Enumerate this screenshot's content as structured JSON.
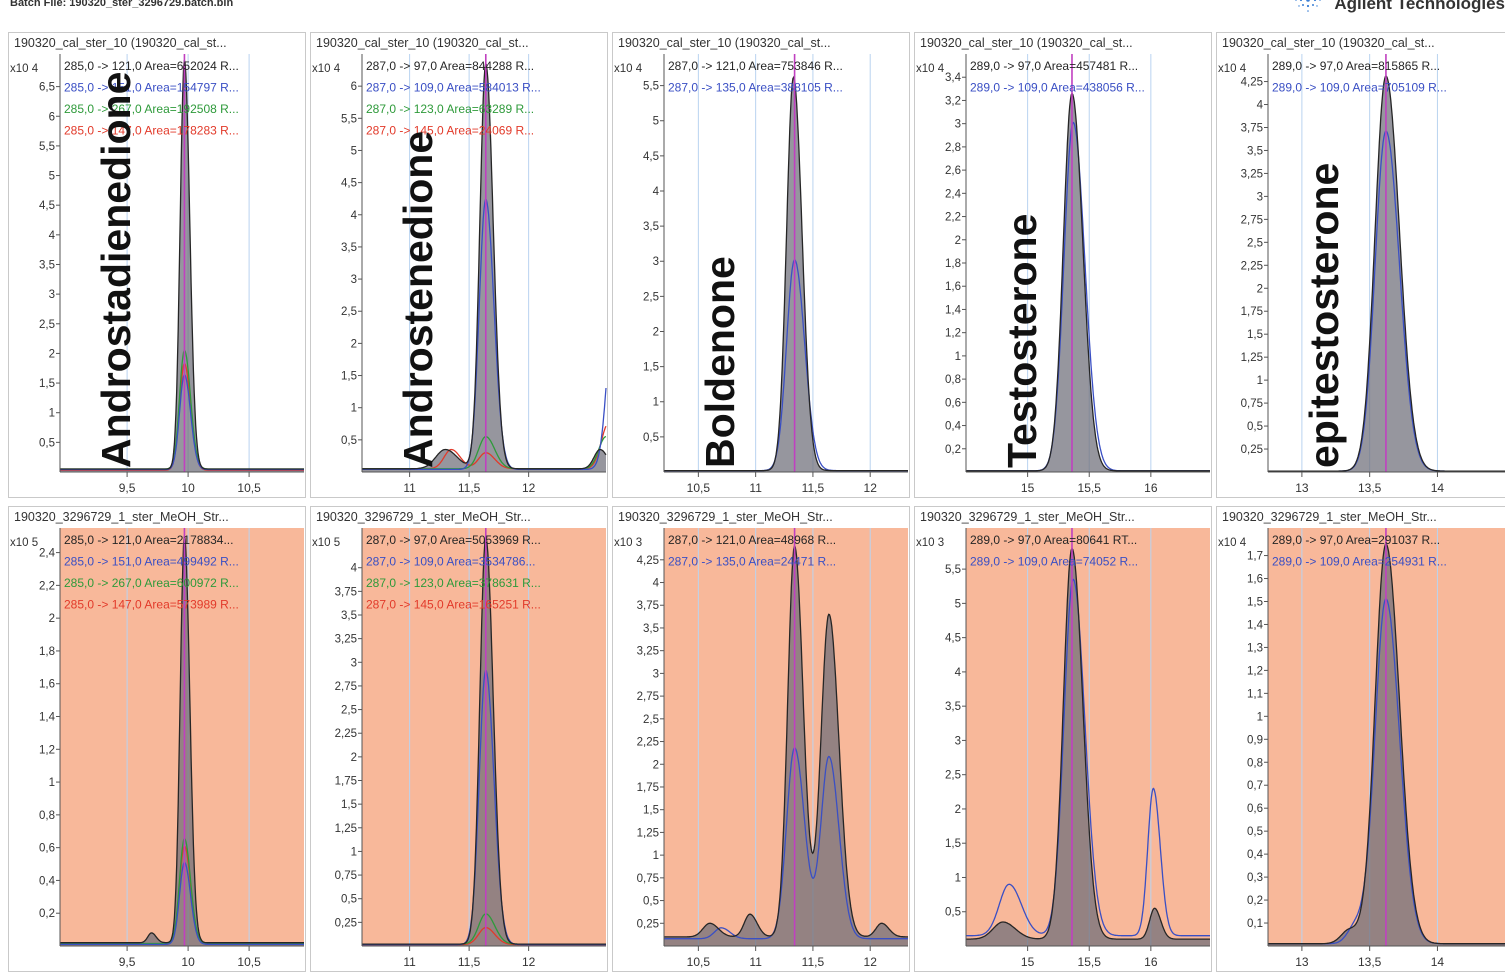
{
  "header": {
    "batch_file": "Batch File: 190320_ster_3296729.batch.bin",
    "brand": "Agilent Technologies",
    "logo_icon": "agilent-spark-logo-icon"
  },
  "colors": {
    "black": "#262626",
    "blue": "#3a4fc4",
    "green": "#2e9a3a",
    "red": "#e23a2a",
    "marker": "#c040c0",
    "calibration_bg": "#ffffff",
    "sample_bg": "#f8b89a",
    "fill": "#6e6e78",
    "grid": "#b9d3f0"
  },
  "chart_data": [
    {
      "type": "line",
      "panel": "calibration",
      "compound": "Androstadienedione",
      "title": "190320_cal_ster_10  (190320_cal_st...",
      "exponent": "x10 4",
      "xlim": [
        8.95,
        10.95
      ],
      "ylim": [
        0,
        7.05
      ],
      "xticks": [
        "9,5",
        "10",
        "10,5"
      ],
      "xtick_values": [
        9.5,
        10,
        10.5
      ],
      "yticks": [
        "0,5",
        "1",
        "1,5",
        "2",
        "2,5",
        "3",
        "3,5",
        "4",
        "4,5",
        "5",
        "5,5",
        "6",
        "6,5"
      ],
      "ytick_values": [
        0.5,
        1,
        1.5,
        2,
        2.5,
        3,
        3.5,
        4,
        4.5,
        5,
        5.5,
        6,
        6.5
      ],
      "marker_x": 9.97,
      "legend": [
        {
          "text": "285,0 -> 121,0 Area=652024 R...",
          "color": "black"
        },
        {
          "text": "285,0 -> 151,0 Area=154797 R...",
          "color": "blue"
        },
        {
          "text": "285,0 -> 267,0 Area=192508 R...",
          "color": "green"
        },
        {
          "text": "285,0 -> 147,0 Area=178283 R...",
          "color": "red"
        }
      ],
      "series": [
        {
          "color": "black",
          "peaks": [
            [
              9.97,
              6.9,
              0.035
            ]
          ],
          "baseline": 0.05,
          "fill": true
        },
        {
          "color": "blue",
          "peaks": [
            [
              9.97,
              1.6,
              0.04
            ]
          ],
          "baseline": 0.04
        },
        {
          "color": "green",
          "peaks": [
            [
              9.97,
              2.0,
              0.04
            ]
          ],
          "baseline": 0.05
        },
        {
          "color": "red",
          "peaks": [
            [
              9.97,
              1.8,
              0.04
            ]
          ],
          "baseline": 0.03
        }
      ]
    },
    {
      "type": "line",
      "panel": "calibration",
      "compound": "Androstenedione",
      "title": "190320_cal_ster_10  (190320_cal_st...",
      "exponent": "x10 4",
      "xlim": [
        10.6,
        12.65
      ],
      "ylim": [
        0,
        6.5
      ],
      "xticks": [
        "11",
        "11,5",
        "12"
      ],
      "xtick_values": [
        11,
        11.5,
        12
      ],
      "yticks": [
        "0,5",
        "1",
        "1,5",
        "2",
        "2,5",
        "3",
        "3,5",
        "4",
        "4,5",
        "5",
        "5,5",
        "6"
      ],
      "ytick_values": [
        0.5,
        1,
        1.5,
        2,
        2.5,
        3,
        3.5,
        4,
        4.5,
        5,
        5.5,
        6
      ],
      "marker_x": 11.64,
      "legend": [
        {
          "text": "287,0 -> 97,0 Area=844288 R...",
          "color": "black"
        },
        {
          "text": "287,0 -> 109,0 Area=584013 R...",
          "color": "blue"
        },
        {
          "text": "287,0 -> 123,0 Area=63289 R...",
          "color": "green"
        },
        {
          "text": "287,0 -> 145,0 Area=24069 R...",
          "color": "red"
        }
      ],
      "series": [
        {
          "color": "black",
          "peaks": [
            [
              11.64,
              6.3,
              0.05
            ],
            [
              11.3,
              0.3,
              0.08
            ],
            [
              12.6,
              0.3,
              0.05
            ]
          ],
          "baseline": 0.05,
          "fill": true
        },
        {
          "color": "blue",
          "peaks": [
            [
              11.64,
              4.2,
              0.055
            ],
            [
              12.72,
              2.5,
              0.06
            ]
          ],
          "baseline": 0.04
        },
        {
          "color": "green",
          "peaks": [
            [
              11.64,
              0.5,
              0.06
            ],
            [
              12.65,
              0.5,
              0.06
            ]
          ],
          "baseline": 0.05
        },
        {
          "color": "red",
          "peaks": [
            [
              11.35,
              0.3,
              0.06
            ],
            [
              11.64,
              0.25,
              0.06
            ],
            [
              12.67,
              0.7,
              0.06
            ]
          ],
          "baseline": 0.05
        }
      ]
    },
    {
      "type": "line",
      "panel": "calibration",
      "compound": "Boldenone",
      "title": "190320_cal_ster_10  (190320_cal_st...",
      "exponent": "x10 4",
      "xlim": [
        10.2,
        12.33
      ],
      "ylim": [
        0,
        5.95
      ],
      "xticks": [
        "10,5",
        "11",
        "11,5",
        "12"
      ],
      "xtick_values": [
        10.5,
        11,
        11.5,
        12
      ],
      "yticks": [
        "0,5",
        "1",
        "1,5",
        "2",
        "2,5",
        "3",
        "3,5",
        "4",
        "4,5",
        "5",
        "5,5"
      ],
      "ytick_values": [
        0.5,
        1,
        1.5,
        2,
        2.5,
        3,
        3.5,
        4,
        4.5,
        5,
        5.5
      ],
      "marker_x": 11.34,
      "legend": [
        {
          "text": "287,0 -> 121,0 Area=753846 R...",
          "color": "black"
        },
        {
          "text": "287,0 -> 135,0 Area=388105 R...",
          "color": "blue"
        }
      ],
      "series": [
        {
          "color": "black",
          "peaks": [
            [
              11.33,
              5.6,
              0.06
            ]
          ],
          "baseline": 0.02,
          "fill": true
        },
        {
          "color": "blue",
          "peaks": [
            [
              11.34,
              3.0,
              0.07
            ]
          ],
          "baseline": 0.02
        }
      ]
    },
    {
      "type": "line",
      "panel": "calibration",
      "compound": "Testosterone",
      "title": "190320_cal_ster_10  (190320_cal_st...",
      "exponent": "x10 4",
      "xlim": [
        14.5,
        16.48
      ],
      "ylim": [
        0,
        3.6
      ],
      "xticks": [
        "15",
        "15,5",
        "16"
      ],
      "xtick_values": [
        15,
        15.5,
        16
      ],
      "yticks": [
        "0,2",
        "0,4",
        "0,6",
        "0,8",
        "1",
        "1,2",
        "1,4",
        "1,6",
        "1,8",
        "2",
        "2,2",
        "2,4",
        "2,6",
        "2,8",
        "3",
        "3,2",
        "3,4"
      ],
      "ytick_values": [
        0.2,
        0.4,
        0.6,
        0.8,
        1,
        1.2,
        1.4,
        1.6,
        1.8,
        2,
        2.2,
        2.4,
        2.6,
        2.8,
        3,
        3.2,
        3.4
      ],
      "marker_x": 15.36,
      "legend": [
        {
          "text": "289,0 -> 97,0 Area=457481 R...",
          "color": "black"
        },
        {
          "text": "289,0 -> 109,0 Area=438056 R...",
          "color": "blue"
        }
      ],
      "series": [
        {
          "color": "black",
          "peaks": [
            [
              15.36,
              3.25,
              0.07
            ]
          ],
          "baseline": 0.01,
          "fill": true
        },
        {
          "color": "blue",
          "peaks": [
            [
              15.37,
              3.0,
              0.075
            ]
          ],
          "baseline": 0.01
        }
      ]
    },
    {
      "type": "line",
      "panel": "calibration",
      "compound": "epitestosterone",
      "title": "190320_cal_ster_10  (190320_cal_st...",
      "exponent": "x10 4",
      "xlim": [
        12.75,
        14.55
      ],
      "ylim": [
        0,
        4.55
      ],
      "xticks": [
        "13",
        "13,5",
        "14"
      ],
      "xtick_values": [
        13,
        13.5,
        14
      ],
      "yticks": [
        "0,25",
        "0,5",
        "0,75",
        "1",
        "1,25",
        "1,5",
        "1,75",
        "2",
        "2,25",
        "2,5",
        "2,75",
        "3",
        "3,25",
        "3,5",
        "3,75",
        "4",
        "4,25"
      ],
      "ytick_values": [
        0.25,
        0.5,
        0.75,
        1,
        1.25,
        1.5,
        1.75,
        2,
        2.25,
        2.5,
        2.75,
        3,
        3.25,
        3.5,
        3.75,
        4,
        4.25
      ],
      "marker_x": 13.62,
      "legend": [
        {
          "text": "289,0 -> 97,0 Area=815865 R...",
          "color": "black"
        },
        {
          "text": "289,0 -> 109,0 Area=705109 R...",
          "color": "blue"
        }
      ],
      "series": [
        {
          "color": "black",
          "peaks": [
            [
              13.62,
              4.3,
              0.08
            ]
          ],
          "baseline": 0.01,
          "fill": true
        },
        {
          "color": "blue",
          "peaks": [
            [
              13.62,
              3.7,
              0.08
            ]
          ],
          "baseline": 0.01
        }
      ]
    },
    {
      "type": "line",
      "panel": "sample",
      "title": "190320_3296729_1_ster_MeOH_Str...",
      "exponent": "x10 5",
      "xlim": [
        8.95,
        10.95
      ],
      "ylim": [
        0,
        2.55
      ],
      "xticks": [
        "9,5",
        "10",
        "10,5"
      ],
      "xtick_values": [
        9.5,
        10,
        10.5
      ],
      "yticks": [
        "0,2",
        "0,4",
        "0,6",
        "0,8",
        "1",
        "1,2",
        "1,4",
        "1,6",
        "1,8",
        "2",
        "2,2",
        "2,4"
      ],
      "ytick_values": [
        0.2,
        0.4,
        0.6,
        0.8,
        1,
        1.2,
        1.4,
        1.6,
        1.8,
        2,
        2.2,
        2.4
      ],
      "marker_x": 9.97,
      "legend": [
        {
          "text": "285,0 -> 121,0 Area=2178834...",
          "color": "black"
        },
        {
          "text": "285,0 -> 151,0 Area=499492 R...",
          "color": "blue"
        },
        {
          "text": "285,0 -> 267,0 Area=600972 R...",
          "color": "green"
        },
        {
          "text": "285,0 -> 147,0 Area=573989 R...",
          "color": "red"
        }
      ],
      "series": [
        {
          "color": "black",
          "peaks": [
            [
              9.97,
              2.48,
              0.035
            ],
            [
              9.7,
              0.06,
              0.03
            ]
          ],
          "baseline": 0.02,
          "fill": true
        },
        {
          "color": "blue",
          "peaks": [
            [
              9.97,
              0.5,
              0.04
            ]
          ],
          "baseline": 0.01
        },
        {
          "color": "green",
          "peaks": [
            [
              9.97,
              0.64,
              0.04
            ]
          ],
          "baseline": 0.015
        },
        {
          "color": "red",
          "peaks": [
            [
              9.97,
              0.6,
              0.04
            ]
          ],
          "baseline": 0.01
        }
      ]
    },
    {
      "type": "line",
      "panel": "sample",
      "title": "190320_3296729_1_ster_MeOH_Str...",
      "exponent": "x10 5",
      "xlim": [
        10.6,
        12.65
      ],
      "ylim": [
        0,
        4.42
      ],
      "xticks": [
        "11",
        "11,5",
        "12"
      ],
      "xtick_values": [
        11,
        11.5,
        12
      ],
      "yticks": [
        "0,25",
        "0,5",
        "0,75",
        "1",
        "1,25",
        "1,5",
        "1,75",
        "2",
        "2,25",
        "2,5",
        "2,75",
        "3",
        "3,25",
        "3,5",
        "3,75",
        "4"
      ],
      "ytick_values": [
        0.25,
        0.5,
        0.75,
        1,
        1.25,
        1.5,
        1.75,
        2,
        2.25,
        2.5,
        2.75,
        3,
        3.25,
        3.5,
        3.75,
        4
      ],
      "marker_x": 11.64,
      "legend": [
        {
          "text": "287,0 -> 97,0 Area=5053969 R...",
          "color": "black"
        },
        {
          "text": "287,0 -> 109,0 Area=3534786...",
          "color": "blue"
        },
        {
          "text": "287,0 -> 123,0 Area=378631 R...",
          "color": "green"
        },
        {
          "text": "287,0 -> 145,0 Area=165251 R...",
          "color": "red"
        }
      ],
      "series": [
        {
          "color": "black",
          "peaks": [
            [
              11.64,
              4.3,
              0.05
            ]
          ],
          "baseline": 0.02,
          "fill": true
        },
        {
          "color": "blue",
          "peaks": [
            [
              11.64,
              2.9,
              0.055
            ]
          ],
          "baseline": 0.015
        },
        {
          "color": "green",
          "peaks": [
            [
              11.64,
              0.32,
              0.06
            ]
          ],
          "baseline": 0.02
        },
        {
          "color": "red",
          "peaks": [
            [
              11.64,
              0.18,
              0.06
            ]
          ],
          "baseline": 0.015
        }
      ]
    },
    {
      "type": "line",
      "panel": "sample",
      "title": "190320_3296729_1_ster_MeOH_Str...",
      "exponent": "x10 3",
      "xlim": [
        10.2,
        12.33
      ],
      "ylim": [
        0,
        4.6
      ],
      "xticks": [
        "10,5",
        "11",
        "11,5",
        "12"
      ],
      "xtick_values": [
        10.5,
        11,
        11.5,
        12
      ],
      "yticks": [
        "0,25",
        "0,5",
        "0,75",
        "1",
        "1,25",
        "1,5",
        "1,75",
        "2",
        "2,25",
        "2,5",
        "2,75",
        "3",
        "3,25",
        "3,5",
        "3,75",
        "4",
        "4,25"
      ],
      "ytick_values": [
        0.25,
        0.5,
        0.75,
        1,
        1.25,
        1.5,
        1.75,
        2,
        2.25,
        2.5,
        2.75,
        3,
        3.25,
        3.5,
        3.75,
        4,
        4.25
      ],
      "marker_x": 11.34,
      "legend": [
        {
          "text": "287,0 -> 121,0 Area=48968 R...",
          "color": "black"
        },
        {
          "text": "287,0 -> 135,0 Area=24471 R...",
          "color": "blue"
        }
      ],
      "series": [
        {
          "color": "black",
          "peaks": [
            [
              11.34,
              4.3,
              0.06
            ],
            [
              11.64,
              3.55,
              0.07
            ],
            [
              10.6,
              0.15,
              0.06
            ],
            [
              10.95,
              0.25,
              0.05
            ],
            [
              12.1,
              0.15,
              0.05
            ]
          ],
          "baseline": 0.1,
          "fill": true
        },
        {
          "color": "blue",
          "peaks": [
            [
              11.34,
              2.1,
              0.07
            ],
            [
              11.64,
              2.0,
              0.07
            ],
            [
              10.7,
              0.12,
              0.06
            ]
          ],
          "baseline": 0.08
        }
      ]
    },
    {
      "type": "line",
      "panel": "sample",
      "title": "190320_3296729_1_ster_MeOH_Str...",
      "exponent": "x10 3",
      "xlim": [
        14.5,
        16.48
      ],
      "ylim": [
        0,
        6.1
      ],
      "xticks": [
        "15",
        "15,5",
        "16"
      ],
      "xtick_values": [
        15,
        15.5,
        16
      ],
      "yticks": [
        "0,5",
        "1",
        "1,5",
        "2",
        "2,5",
        "3",
        "3,5",
        "4",
        "4,5",
        "5",
        "5,5"
      ],
      "ytick_values": [
        0.5,
        1,
        1.5,
        2,
        2.5,
        3,
        3.5,
        4,
        4.5,
        5,
        5.5
      ],
      "marker_x": 15.36,
      "legend": [
        {
          "text": "289,0 -> 97,0 Area=80641 RT...",
          "color": "black"
        },
        {
          "text": "289,0 -> 109,0 Area=74052 R...",
          "color": "blue"
        }
      ],
      "series": [
        {
          "color": "black",
          "peaks": [
            [
              15.36,
              5.7,
              0.07
            ],
            [
              14.8,
              0.25,
              0.08
            ],
            [
              16.03,
              0.45,
              0.04
            ]
          ],
          "baseline": 0.1,
          "fill": true
        },
        {
          "color": "blue",
          "peaks": [
            [
              15.37,
              5.2,
              0.075
            ],
            [
              14.85,
              0.75,
              0.08
            ],
            [
              16.02,
              2.15,
              0.045
            ]
          ],
          "baseline": 0.15
        }
      ]
    },
    {
      "type": "line",
      "panel": "sample",
      "title": "190320_3296729_1_ster_MeOH_Str...",
      "exponent": "x10 4",
      "xlim": [
        12.75,
        14.55
      ],
      "ylim": [
        0,
        1.82
      ],
      "xticks": [
        "13",
        "13,5",
        "14"
      ],
      "xtick_values": [
        13,
        13.5,
        14
      ],
      "yticks": [
        "0,1",
        "0,2",
        "0,3",
        "0,4",
        "0,5",
        "0,6",
        "0,7",
        "0,8",
        "0,9",
        "1",
        "1,1",
        "1,2",
        "1,3",
        "1,4",
        "1,5",
        "1,6",
        "1,7"
      ],
      "ytick_values": [
        0.1,
        0.2,
        0.3,
        0.4,
        0.5,
        0.6,
        0.7,
        0.8,
        0.9,
        1,
        1.1,
        1.2,
        1.3,
        1.4,
        1.5,
        1.6,
        1.7
      ],
      "marker_x": 13.62,
      "legend": [
        {
          "text": "289,0 -> 97,0 Area=291037 R...",
          "color": "black"
        },
        {
          "text": "289,0 -> 109,0 Area=254931 R...",
          "color": "blue"
        }
      ],
      "series": [
        {
          "color": "black",
          "peaks": [
            [
              13.62,
              1.74,
              0.08
            ],
            [
              13.35,
              0.06,
              0.06
            ]
          ],
          "baseline": 0.01,
          "fill": true
        },
        {
          "color": "blue",
          "peaks": [
            [
              13.62,
              1.5,
              0.08
            ],
            [
              13.4,
              0.08,
              0.06
            ]
          ],
          "baseline": 0.01
        }
      ]
    }
  ]
}
